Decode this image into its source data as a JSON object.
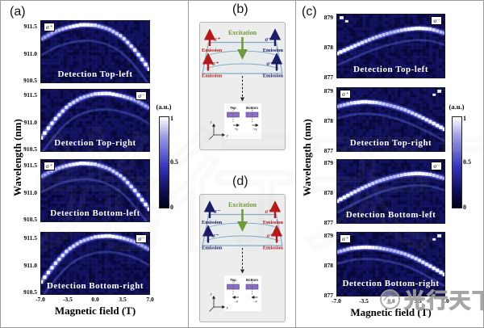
{
  "panels": {
    "a": {
      "label": "(a)",
      "ylabel": "Wavelength (nm)",
      "xlabel": "Magnetic field (T)",
      "yticks": [
        "911.5",
        "911.0",
        "910.5"
      ],
      "xticks": [
        "-7.0",
        "-3.5",
        "0.0",
        "3.5",
        "7.0"
      ],
      "colorbar": {
        "title": "(a.u.)",
        "ticks": [
          "1",
          "0.5",
          "0"
        ]
      }
    },
    "b": {
      "label": "(b)",
      "excitation": "Excitation",
      "emission": "Emission",
      "corners": {
        "tl": "σ⁺",
        "tr": "σ⁻",
        "bl": "σ⁺",
        "br": "σ⁻"
      },
      "inset": {
        "top": "Top",
        "bottom": "Bottom",
        "arrow_label": "+x"
      },
      "axes": {
        "vertical": "z",
        "horizontal": "x"
      }
    },
    "c": {
      "label": "(c)",
      "ylabel": "Wavelength (nm)",
      "xlabel": "Magnetic field (T)",
      "yticks": [
        "879",
        "878",
        "877"
      ],
      "xticks": [
        "-7.0",
        "-3.5",
        "0.0",
        "3.5",
        "7.0"
      ],
      "colorbar": {
        "title": "(a.u.)",
        "ticks": [
          "1",
          "0.5",
          "0"
        ]
      }
    },
    "d": {
      "label": "(d)",
      "excitation": "Excitation",
      "emission": "Emission",
      "corners": {
        "tl": "σ⁻",
        "tr": "σ⁺",
        "bl": "σ⁻",
        "br": "σ⁺"
      },
      "inset": {
        "top": "Top",
        "bottom": "Bottom",
        "arrow_label": "−x"
      },
      "axes": {
        "vertical": "z",
        "horizontal": "x"
      }
    }
  },
  "watermark": {
    "text": "光行天下"
  },
  "colors": {
    "sigma_plus_red": "#b51a1a",
    "sigma_minus_navy": "#1b1b66",
    "excitation_green": "#6f9a3c",
    "heatmap_background": "#07073a",
    "heatmap_peak": "#ffffff"
  },
  "chart_data": [
    {
      "type": "heatmap",
      "panel": "a",
      "xlabel": "Magnetic field (T)",
      "ylabel": "Wavelength (nm)",
      "xlim": [
        -7,
        7
      ],
      "ylim": [
        910.45,
        911.62
      ],
      "xticks": [
        -7,
        -3.5,
        0,
        3.5,
        7
      ],
      "yticks": [
        911.5,
        911.0,
        910.5
      ],
      "colorbar": {
        "label": "(a.u.)",
        "ticks": [
          1,
          0.5,
          0
        ]
      },
      "subpanels": [
        {
          "title": "Detection Top-left",
          "polarization": "σ⁺",
          "x": [
            -7,
            -5.25,
            -3.5,
            -1.75,
            0,
            1.75,
            3.5,
            5.25,
            7
          ],
          "wavelength_nm": [
            911.27,
            911.42,
            911.5,
            911.55,
            911.54,
            911.47,
            911.32,
            911.05,
            910.7
          ],
          "bright_flank": "right",
          "echo_offset_nm": -0.3,
          "corner_spot": null
        },
        {
          "title": "Detection Top-right",
          "polarization": "σ⁻",
          "x": [
            -7,
            -5.25,
            -3.5,
            -1.75,
            0,
            1.75,
            3.5,
            5.25,
            7
          ],
          "wavelength_nm": [
            910.7,
            911.05,
            911.32,
            911.47,
            911.54,
            911.55,
            911.5,
            911.42,
            911.27
          ],
          "bright_flank": "left",
          "echo_offset_nm": -0.3,
          "corner_spot": null
        },
        {
          "title": "Detection Bottom-left",
          "polarization": "σ⁺",
          "x": [
            -7,
            -5.25,
            -3.5,
            -1.75,
            0,
            1.75,
            3.5,
            5.25,
            7
          ],
          "wavelength_nm": [
            911.3,
            911.44,
            911.52,
            911.56,
            911.54,
            911.46,
            911.3,
            911.02,
            910.68
          ],
          "bright_flank": "right",
          "echo_offset_nm": -0.3,
          "corner_spot": null
        },
        {
          "title": "Detection Bottom-right",
          "polarization": "σ⁻",
          "x": [
            -7,
            -5.25,
            -3.5,
            -1.75,
            0,
            1.75,
            3.5,
            5.25,
            7
          ],
          "wavelength_nm": [
            910.68,
            911.02,
            911.3,
            911.46,
            911.54,
            911.56,
            911.52,
            911.44,
            911.3
          ],
          "bright_flank": "left",
          "echo_offset_nm": -0.3,
          "corner_spot": null
        }
      ]
    },
    {
      "type": "heatmap",
      "panel": "c",
      "xlabel": "Magnetic field (T)",
      "ylabel": "Wavelength (nm)",
      "xlim": [
        -7,
        7
      ],
      "ylim": [
        876.95,
        879.12
      ],
      "xticks": [
        -7,
        -3.5,
        0,
        3.5,
        7
      ],
      "yticks": [
        879,
        878,
        877
      ],
      "colorbar": {
        "label": "(a.u.)",
        "ticks": [
          1,
          0.5,
          0
        ]
      },
      "subpanels": [
        {
          "title": "Detection Top-left",
          "polarization": "σ⁻",
          "x": [
            -7,
            -5.25,
            -3.5,
            -1.75,
            0,
            1.75,
            3.5,
            5.25,
            7
          ],
          "wavelength_nm": [
            877.78,
            877.98,
            878.18,
            878.36,
            878.5,
            878.6,
            878.65,
            878.62,
            878.48
          ],
          "bright_flank": "left",
          "echo_offset_nm": -0.4,
          "corner_spot": "tl"
        },
        {
          "title": "Detection Top-right",
          "polarization": "σ⁺",
          "x": [
            -7,
            -5.25,
            -3.5,
            -1.75,
            0,
            1.75,
            3.5,
            5.25,
            7
          ],
          "wavelength_nm": [
            878.48,
            878.6,
            878.65,
            878.62,
            878.52,
            878.38,
            878.18,
            877.95,
            877.7
          ],
          "bright_flank": "right",
          "echo_offset_nm": -0.4,
          "corner_spot": "tr"
        },
        {
          "title": "Detection Bottom-left",
          "polarization": "σ⁻",
          "x": [
            -7,
            -5.25,
            -3.5,
            -1.75,
            0,
            1.75,
            3.5,
            5.25,
            7
          ],
          "wavelength_nm": [
            877.7,
            877.95,
            878.18,
            878.38,
            878.52,
            878.62,
            878.66,
            878.62,
            878.48
          ],
          "bright_flank": "left",
          "echo_offset_nm": -0.4,
          "corner_spot": "tr"
        },
        {
          "title": "Detection Bottom-right",
          "polarization": "σ⁺",
          "x": [
            -7,
            -5.25,
            -3.5,
            -1.75,
            0,
            1.75,
            3.5,
            5.25,
            7
          ],
          "wavelength_nm": [
            878.45,
            878.58,
            878.62,
            878.6,
            878.52,
            878.4,
            878.2,
            877.95,
            877.68
          ],
          "bright_flank": "right",
          "echo_offset_nm": -0.4,
          "corner_spot": "tr"
        }
      ]
    }
  ]
}
